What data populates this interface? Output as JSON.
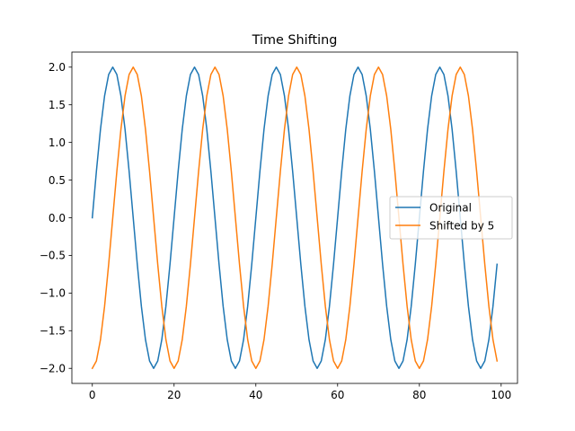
{
  "chart_data": {
    "type": "line",
    "title": "Time Shifting",
    "xlabel": "",
    "ylabel": "",
    "xlim": [
      -5,
      104
    ],
    "ylim": [
      -2.2,
      2.2
    ],
    "xticks": [
      0,
      20,
      40,
      60,
      80,
      100
    ],
    "yticks": [
      -2.0,
      -1.5,
      -1.0,
      -0.5,
      0.0,
      0.5,
      1.0,
      1.5,
      2.0
    ],
    "xtick_labels": [
      "0",
      "20",
      "40",
      "60",
      "80",
      "100"
    ],
    "ytick_labels": [
      "−2.0",
      "−1.5",
      "−1.0",
      "−0.5",
      "0.0",
      "0.5",
      "1.0",
      "1.5",
      "2.0"
    ],
    "grid": false,
    "legend_position": "center-right",
    "series": [
      {
        "name": "Original",
        "color": "#1f77b4",
        "x": [
          0,
          1,
          2,
          3,
          4,
          5,
          6,
          7,
          8,
          9,
          10,
          11,
          12,
          13,
          14,
          15,
          16,
          17,
          18,
          19,
          20,
          21,
          22,
          23,
          24,
          25,
          26,
          27,
          28,
          29,
          30,
          31,
          32,
          33,
          34,
          35,
          36,
          37,
          38,
          39,
          40,
          41,
          42,
          43,
          44,
          45,
          46,
          47,
          48,
          49,
          50,
          51,
          52,
          53,
          54,
          55,
          56,
          57,
          58,
          59,
          60,
          61,
          62,
          63,
          64,
          65,
          66,
          67,
          68,
          69,
          70,
          71,
          72,
          73,
          74,
          75,
          76,
          77,
          78,
          79,
          80,
          81,
          82,
          83,
          84,
          85,
          86,
          87,
          88,
          89,
          90,
          91,
          92,
          93,
          94,
          95,
          96,
          97,
          98,
          99
        ],
        "y": [
          0.0,
          0.618,
          1.176,
          1.618,
          1.902,
          2.0,
          1.902,
          1.618,
          1.176,
          0.618,
          0.0,
          -0.618,
          -1.176,
          -1.618,
          -1.902,
          -2.0,
          -1.902,
          -1.618,
          -1.176,
          -0.618,
          0.0,
          0.618,
          1.176,
          1.618,
          1.902,
          2.0,
          1.902,
          1.618,
          1.176,
          0.618,
          0.0,
          -0.618,
          -1.176,
          -1.618,
          -1.902,
          -2.0,
          -1.902,
          -1.618,
          -1.176,
          -0.618,
          0.0,
          0.618,
          1.176,
          1.618,
          1.902,
          2.0,
          1.902,
          1.618,
          1.176,
          0.618,
          0.0,
          -0.618,
          -1.176,
          -1.618,
          -1.902,
          -2.0,
          -1.902,
          -1.618,
          -1.176,
          -0.618,
          0.0,
          0.618,
          1.176,
          1.618,
          1.902,
          2.0,
          1.902,
          1.618,
          1.176,
          0.618,
          0.0,
          -0.618,
          -1.176,
          -1.618,
          -1.902,
          -2.0,
          -1.902,
          -1.618,
          -1.176,
          -0.618,
          0.0,
          0.618,
          1.176,
          1.618,
          1.902,
          2.0,
          1.902,
          1.618,
          1.176,
          0.618,
          0.0,
          -0.618,
          -1.176,
          -1.618,
          -1.902,
          -2.0,
          -1.902,
          -1.618,
          -1.176,
          -0.618
        ]
      },
      {
        "name": "Shifted by 5",
        "color": "#ff7f0e",
        "x": [
          0,
          1,
          2,
          3,
          4,
          5,
          6,
          7,
          8,
          9,
          10,
          11,
          12,
          13,
          14,
          15,
          16,
          17,
          18,
          19,
          20,
          21,
          22,
          23,
          24,
          25,
          26,
          27,
          28,
          29,
          30,
          31,
          32,
          33,
          34,
          35,
          36,
          37,
          38,
          39,
          40,
          41,
          42,
          43,
          44,
          45,
          46,
          47,
          48,
          49,
          50,
          51,
          52,
          53,
          54,
          55,
          56,
          57,
          58,
          59,
          60,
          61,
          62,
          63,
          64,
          65,
          66,
          67,
          68,
          69,
          70,
          71,
          72,
          73,
          74,
          75,
          76,
          77,
          78,
          79,
          80,
          81,
          82,
          83,
          84,
          85,
          86,
          87,
          88,
          89,
          90,
          91,
          92,
          93,
          94,
          95,
          96,
          97,
          98,
          99
        ],
        "y": [
          -2.0,
          -1.902,
          -1.618,
          -1.176,
          -0.618,
          0.0,
          0.618,
          1.176,
          1.618,
          1.902,
          2.0,
          1.902,
          1.618,
          1.176,
          0.618,
          0.0,
          -0.618,
          -1.176,
          -1.618,
          -1.902,
          -2.0,
          -1.902,
          -1.618,
          -1.176,
          -0.618,
          0.0,
          0.618,
          1.176,
          1.618,
          1.902,
          2.0,
          1.902,
          1.618,
          1.176,
          0.618,
          0.0,
          -0.618,
          -1.176,
          -1.618,
          -1.902,
          -2.0,
          -1.902,
          -1.618,
          -1.176,
          -0.618,
          0.0,
          0.618,
          1.176,
          1.618,
          1.902,
          2.0,
          1.902,
          1.618,
          1.176,
          0.618,
          0.0,
          -0.618,
          -1.176,
          -1.618,
          -1.902,
          -2.0,
          -1.902,
          -1.618,
          -1.176,
          -0.618,
          0.0,
          0.618,
          1.176,
          1.618,
          1.902,
          2.0,
          1.902,
          1.618,
          1.176,
          0.618,
          0.0,
          -0.618,
          -1.176,
          -1.618,
          -1.902,
          -2.0,
          -1.902,
          -1.618,
          -1.176,
          -0.618,
          0.0,
          0.618,
          1.176,
          1.618,
          1.902,
          2.0,
          1.902,
          1.618,
          1.176,
          0.618,
          0.0,
          -0.618,
          -1.176,
          -1.618,
          -1.902
        ]
      }
    ]
  }
}
